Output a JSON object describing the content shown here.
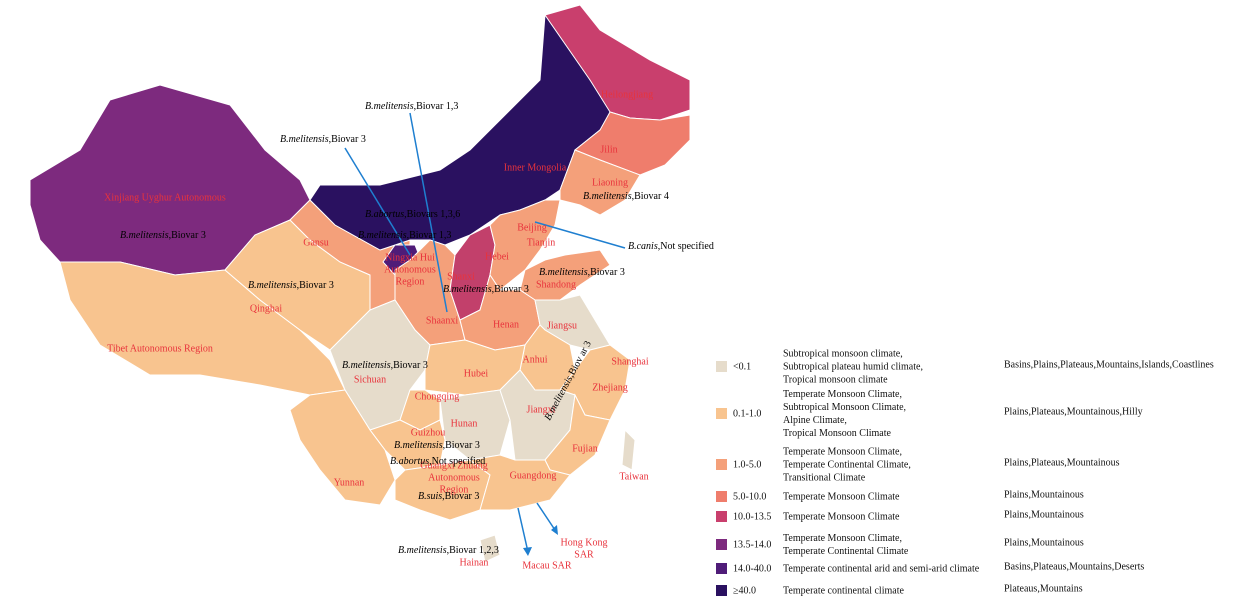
{
  "provinces": [
    {
      "label": [
        "Xinjiang Uyghur Autonomous"
      ],
      "color": "#7d2a7e"
    },
    {
      "label": [
        "Tibet Autonomous Region"
      ],
      "color": "#f8c48f"
    },
    {
      "label": [
        "Qinghai"
      ],
      "color": "#f8c48f"
    },
    {
      "label": [
        "Gansu"
      ],
      "color": "#f4a07a"
    },
    {
      "label": [
        "Inner Mongolia"
      ],
      "color": "#2a1160"
    },
    {
      "label": [
        "Heilongjiang"
      ],
      "color": "#c93f6d"
    },
    {
      "label": [
        "Jilin"
      ],
      "color": "#ef7d6c"
    },
    {
      "label": [
        "Liaoning"
      ],
      "color": "#f4a07a"
    },
    {
      "label": [
        "Ningxia Hui",
        "Autonomous",
        "Region"
      ],
      "color": "#4f1c78"
    },
    {
      "label": [
        "Shaanxi"
      ],
      "color": "#f4a07a"
    },
    {
      "label": [
        "Shanxi"
      ],
      "color": "#c2406b"
    },
    {
      "label": [
        "Hebei"
      ],
      "color": "#f4a07a"
    },
    {
      "label": [
        "Shandong"
      ],
      "color": "#f4a07a"
    },
    {
      "label": [
        "Henan"
      ],
      "color": "#f4a07a"
    },
    {
      "label": [
        "Jiangsu"
      ],
      "color": "#e6dccb"
    },
    {
      "label": [
        "Anhui"
      ],
      "color": "#f8c48f"
    },
    {
      "label": [
        "Zhejiang"
      ],
      "color": "#f8c48f"
    },
    {
      "label": [
        "Sichuan"
      ],
      "color": "#e6dccb"
    },
    {
      "label": [
        "Hubei"
      ],
      "color": "#f8c48f"
    },
    {
      "label": [
        "Chongqing"
      ],
      "color": "#f8c48f"
    },
    {
      "label": [
        "Hunan"
      ],
      "color": "#e6dccb"
    },
    {
      "label": [
        "Jiangxi"
      ],
      "color": "#e6dccb"
    },
    {
      "label": [
        "Fujian"
      ],
      "color": "#f8c48f"
    },
    {
      "label": [
        "Guizhou"
      ],
      "color": "#f8c48f"
    },
    {
      "label": [
        "Yunnan"
      ],
      "color": "#f8c48f"
    },
    {
      "label": [
        "Guangxi Zhuang",
        "Autonomous",
        "Region"
      ],
      "color": "#f8c48f"
    },
    {
      "label": [
        "Guangdong"
      ],
      "color": "#f8c48f"
    },
    {
      "label": [
        "Hainan"
      ],
      "color": "#e6dccb"
    },
    {
      "label": [
        "Taiwan"
      ],
      "color": "#e6dccb"
    },
    {
      "label": [
        "Beijing"
      ]
    },
    {
      "label": [
        "Tianjin"
      ]
    },
    {
      "label": [
        "Shanghai"
      ]
    },
    {
      "label": [
        "Hong Kong",
        "SAR"
      ]
    },
    {
      "label": [
        "Macau SAR"
      ]
    }
  ],
  "annotations": [
    {
      "species": "B.melitensis",
      "text": ",Biovar 1,3"
    },
    {
      "species": "B.melitensis",
      "text": ",Biovar 3"
    },
    {
      "species": "B.melitensis",
      "text": ",Biovar 3"
    },
    {
      "species": "B.abortus",
      "text": ",Biovars 1,3,6"
    },
    {
      "species": "B.melitensis",
      "text": ",Biovar 1,3"
    },
    {
      "species": "B.melitensis",
      "text": ",Biovar 4"
    },
    {
      "species": "B.canis",
      "text": ",Not specified"
    },
    {
      "species": "B.melitensis",
      "text": ",Biovar 3"
    },
    {
      "species": "B.melitensis",
      "text": ",Biovar 3"
    },
    {
      "species": "B.melitensis",
      "text": ",Biovar 3"
    },
    {
      "species": "B.melitensis",
      "text": ",Biovar 3"
    },
    {
      "species": "B.melitensis",
      "text": ",Biovar 3"
    },
    {
      "species": "B.abortus",
      "text": ",Not specified"
    },
    {
      "species": "B.suis",
      "text": ",Biovar 3"
    },
    {
      "species": "B.melitensis",
      "text": ",Biovar 1,2,3"
    },
    {
      "species": "B.melitensis",
      "text": ",Biov ar 3"
    }
  ],
  "legend": [
    {
      "range": "<0.1",
      "color": "#e6dccb",
      "climate": [
        "Subtropical monsoon climate,",
        "Subtropical plateau humid climate,",
        "Tropical monsoon climate"
      ],
      "terrain": "Basins,Plains,Plateaus,Mountains,Islands,Coastlines"
    },
    {
      "range": "0.1-1.0",
      "color": "#f8c48f",
      "climate": [
        "Temperate Monsoon Climate,",
        "Subtropical Monsoon Climate,",
        "Alpine Climate,",
        "Tropical Monsoon Climate"
      ],
      "terrain": "Plains,Plateaus,Mountainous,Hilly"
    },
    {
      "range": "1.0-5.0",
      "color": "#f4a07a",
      "climate": [
        "Temperate Monsoon Climate,",
        "Temperate Continental Climate,",
        "Transitional Climate"
      ],
      "terrain": "Plains,Plateaus,Mountainous"
    },
    {
      "range": "5.0-10.0",
      "color": "#ef7d6c",
      "climate": [
        "Temperate Monsoon Climate"
      ],
      "terrain": "Plains,Mountainous"
    },
    {
      "range": "10.0-13.5",
      "color": "#c93f6d",
      "climate": [
        "Temperate Monsoon Climate"
      ],
      "terrain": "Plains,Mountainous"
    },
    {
      "range": "13.5-14.0",
      "color": "#7d2a7e",
      "climate": [
        "Temperate Monsoon Climate,",
        "Temperate Continental Climate"
      ],
      "terrain": "Plains,Mountainous"
    },
    {
      "range": "14.0-40.0",
      "color": "#4f1c78",
      "climate": [
        "Temperate continental arid and semi-arid climate"
      ],
      "terrain": "Basins,Plateaus,Mountains,Deserts"
    },
    {
      "range": "≥40.0",
      "color": "#2a1160",
      "climate": [
        "Temperate continental climate"
      ],
      "terrain": "Plateaus,Mountains"
    }
  ]
}
